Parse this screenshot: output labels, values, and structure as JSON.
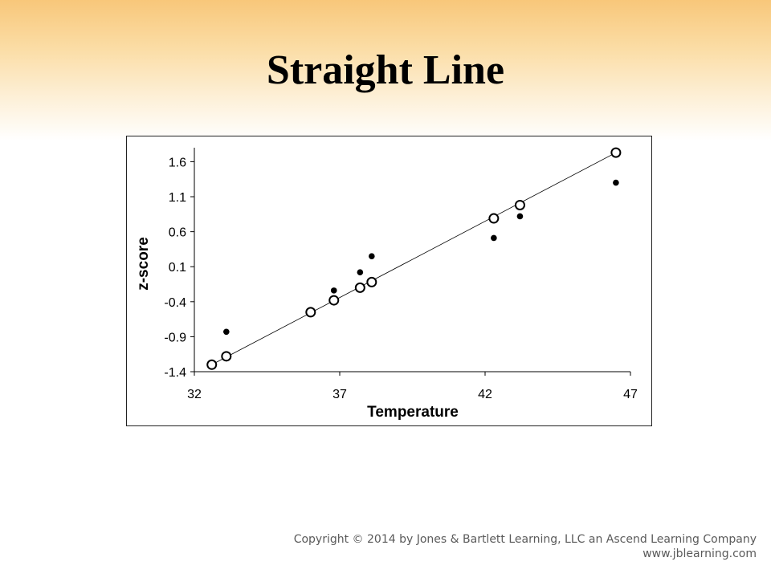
{
  "slide": {
    "title": "Straight Line"
  },
  "footer": {
    "copyright": "Copyright © 2014 by Jones & Bartlett Learning, LLC an Ascend Learning Company",
    "website": "www.jblearning.com"
  },
  "chart_data": {
    "type": "scatter",
    "title": "",
    "xlabel": "Temperature",
    "ylabel": "z-score",
    "xlim": [
      32,
      47
    ],
    "ylim": [
      -1.4,
      1.8
    ],
    "xticks": [
      "32",
      "37",
      "42",
      "47"
    ],
    "yticks": [
      "-1.4",
      "-0.9",
      "-0.4",
      "0.1",
      "0.6",
      "1.1",
      "1.6"
    ],
    "grid": false,
    "legend": "none",
    "fit_line": {
      "x": [
        32.6,
        46.5
      ],
      "y": [
        -1.3,
        1.73
      ]
    },
    "series": [
      {
        "marker": "open-circle",
        "x": [
          32.6,
          33.1,
          36.0,
          36.8,
          37.7,
          38.1,
          42.3,
          43.2,
          46.5
        ],
        "y": [
          -1.3,
          -1.18,
          -0.55,
          -0.38,
          -0.2,
          -0.12,
          0.79,
          0.98,
          1.73
        ]
      },
      {
        "marker": "filled-circle",
        "x": [
          33.1,
          36.8,
          37.7,
          38.1,
          42.3,
          43.2,
          46.5
        ],
        "y": [
          -0.83,
          -0.24,
          0.02,
          0.25,
          0.51,
          0.82,
          1.3
        ]
      }
    ]
  }
}
